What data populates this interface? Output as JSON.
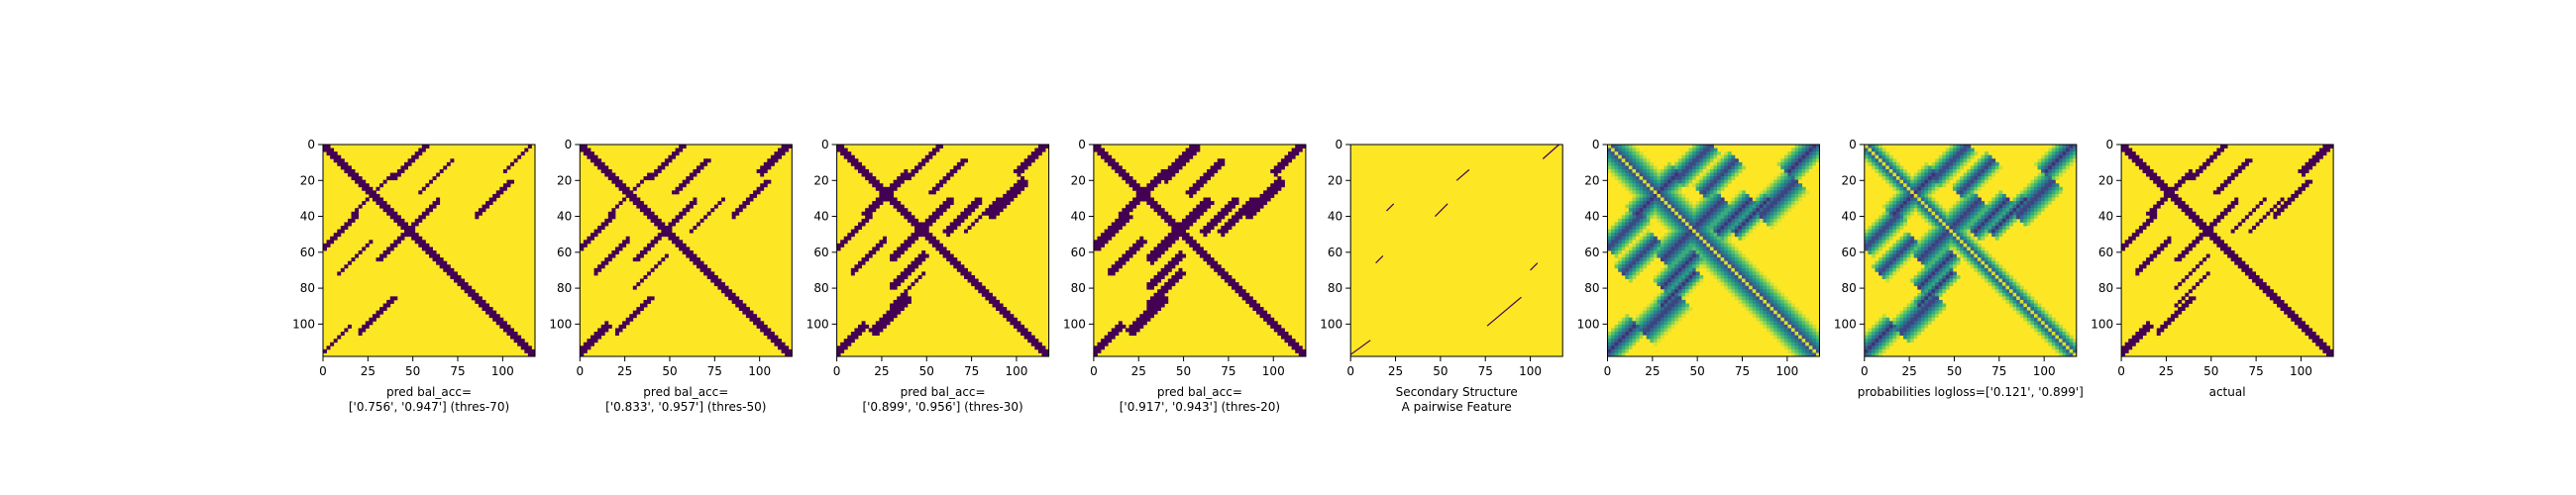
{
  "figure": {
    "background": "#ffffff",
    "colormap": "viridis",
    "colors": {
      "low": "#440154",
      "high": "#fde725",
      "mid": "#21918c"
    }
  },
  "chart_data": [
    {
      "type": "heatmap",
      "title": "",
      "xlabel": "pred bal_acc=\n['0.756', '0.947'] (thres-70)",
      "ylabel": "",
      "xlim": [
        0,
        118
      ],
      "ylim": [
        118,
        0
      ],
      "xticks": [
        0,
        25,
        50,
        75,
        100
      ],
      "yticks": [
        0,
        20,
        40,
        60,
        80,
        100
      ],
      "kind": "binary",
      "diagonal_width": 2.2,
      "features": [
        {
          "a": 40,
          "b": 55,
          "w": 1.2
        },
        {
          "a": 10,
          "b": 48,
          "w": 1.0
        },
        {
          "a": 30,
          "b": 25,
          "w": 0.8
        },
        {
          "a": 95,
          "b": 30,
          "w": 1.0
        },
        {
          "a": 110,
          "b": 6,
          "w": 1.2
        },
        {
          "a": 62,
          "b": 18,
          "w": 0.8
        }
      ]
    },
    {
      "type": "heatmap",
      "title": "",
      "xlabel": "pred bal_acc=\n['0.833', '0.957'] (thres-50)",
      "ylabel": "",
      "xlim": [
        0,
        118
      ],
      "ylim": [
        118,
        0
      ],
      "xticks": [
        0,
        25,
        50,
        75,
        100
      ],
      "yticks": [
        0,
        20,
        40,
        60,
        80,
        100
      ],
      "kind": "binary",
      "diagonal_width": 2.5,
      "features": [
        {
          "a": 40,
          "b": 55,
          "w": 1.6
        },
        {
          "a": 10,
          "b": 48,
          "w": 1.3
        },
        {
          "a": 30,
          "b": 25,
          "w": 1.2
        },
        {
          "a": 95,
          "b": 30,
          "w": 1.5
        },
        {
          "a": 110,
          "b": 6,
          "w": 1.6
        },
        {
          "a": 62,
          "b": 18,
          "w": 1.1
        },
        {
          "a": 70,
          "b": 40,
          "w": 1.0
        }
      ]
    },
    {
      "type": "heatmap",
      "title": "",
      "xlabel": "pred bal_acc=\n['0.899', '0.956'] (thres-30)",
      "ylabel": "",
      "xlim": [
        0,
        118
      ],
      "ylim": [
        118,
        0
      ],
      "xticks": [
        0,
        25,
        50,
        75,
        100
      ],
      "yticks": [
        0,
        20,
        40,
        60,
        80,
        100
      ],
      "kind": "binary",
      "diagonal_width": 3.0,
      "features": [
        {
          "a": 40,
          "b": 55,
          "w": 2.2
        },
        {
          "a": 10,
          "b": 48,
          "w": 1.8
        },
        {
          "a": 30,
          "b": 25,
          "w": 1.8
        },
        {
          "a": 95,
          "b": 30,
          "w": 2.2
        },
        {
          "a": 110,
          "b": 6,
          "w": 2.0
        },
        {
          "a": 62,
          "b": 18,
          "w": 1.6
        },
        {
          "a": 70,
          "b": 40,
          "w": 1.5
        },
        {
          "a": 40,
          "b": 80,
          "w": 1.2
        }
      ]
    },
    {
      "type": "heatmap",
      "title": "",
      "xlabel": "pred bal_acc=\n['0.917', '0.943'] (thres-20)",
      "ylabel": "",
      "xlim": [
        0,
        118
      ],
      "ylim": [
        118,
        0
      ],
      "xticks": [
        0,
        25,
        50,
        75,
        100
      ],
      "yticks": [
        0,
        20,
        40,
        60,
        80,
        100
      ],
      "kind": "binary",
      "diagonal_width": 3.4,
      "features": [
        {
          "a": 40,
          "b": 55,
          "w": 2.7
        },
        {
          "a": 10,
          "b": 48,
          "w": 2.2
        },
        {
          "a": 30,
          "b": 25,
          "w": 2.3
        },
        {
          "a": 95,
          "b": 30,
          "w": 2.8
        },
        {
          "a": 110,
          "b": 6,
          "w": 2.4
        },
        {
          "a": 62,
          "b": 18,
          "w": 2.0
        },
        {
          "a": 70,
          "b": 40,
          "w": 2.0
        },
        {
          "a": 40,
          "b": 80,
          "w": 1.6
        }
      ]
    },
    {
      "type": "heatmap",
      "title": "",
      "xlabel": "Secondary Structure\nA pairwise Feature",
      "ylabel": "",
      "xlim": [
        0,
        118
      ],
      "ylim": [
        118,
        0
      ],
      "xticks": [
        0,
        25,
        50,
        75,
        100
      ],
      "yticks": [
        0,
        20,
        40,
        60,
        80,
        100
      ],
      "kind": "segments",
      "segments": [
        {
          "x1": 20,
          "y1": 37,
          "x2": 24,
          "y2": 33
        },
        {
          "x1": 47,
          "y1": 40,
          "x2": 54,
          "y2": 33
        },
        {
          "x1": 59,
          "y1": 20,
          "x2": 66,
          "y2": 14
        },
        {
          "x1": 14,
          "y1": 66,
          "x2": 18,
          "y2": 62
        },
        {
          "x1": 76,
          "y1": 101,
          "x2": 95,
          "y2": 85
        },
        {
          "x1": 100,
          "y1": 70,
          "x2": 104,
          "y2": 66
        },
        {
          "x1": 107,
          "y1": 8,
          "x2": 116,
          "y2": 0
        },
        {
          "x1": 0,
          "y1": 117,
          "x2": 11,
          "y2": 109
        }
      ]
    },
    {
      "type": "heatmap",
      "title": "",
      "xlabel": "",
      "ylabel": "",
      "xlim": [
        0,
        118
      ],
      "ylim": [
        118,
        0
      ],
      "xticks": [
        0,
        25,
        50,
        75,
        100
      ],
      "yticks": [
        0,
        20,
        40,
        60,
        80,
        100
      ],
      "kind": "probabilities",
      "diagonal_width": 5.0,
      "features": [
        {
          "a": 40,
          "b": 55,
          "w": 3.2
        },
        {
          "a": 10,
          "b": 48,
          "w": 2.6
        },
        {
          "a": 30,
          "b": 25,
          "w": 2.8
        },
        {
          "a": 95,
          "b": 30,
          "w": 3.2
        },
        {
          "a": 110,
          "b": 6,
          "w": 2.8
        },
        {
          "a": 62,
          "b": 18,
          "w": 2.4
        },
        {
          "a": 70,
          "b": 40,
          "w": 2.5
        },
        {
          "a": 40,
          "b": 80,
          "w": 2.0
        }
      ]
    },
    {
      "type": "heatmap",
      "title": "",
      "xlabel": "probabilities logloss=['0.121', '0.899']",
      "ylabel": "",
      "xlim": [
        0,
        118
      ],
      "ylim": [
        118,
        0
      ],
      "xticks": [
        0,
        25,
        50,
        75,
        100
      ],
      "yticks": [
        0,
        20,
        40,
        60,
        80,
        100
      ],
      "kind": "probabilities",
      "diagonal_width": 3.0,
      "features": [
        {
          "a": 40,
          "b": 55,
          "w": 3.0
        },
        {
          "a": 10,
          "b": 48,
          "w": 2.4
        },
        {
          "a": 30,
          "b": 25,
          "w": 2.6
        },
        {
          "a": 95,
          "b": 30,
          "w": 3.0
        },
        {
          "a": 110,
          "b": 6,
          "w": 2.6
        },
        {
          "a": 62,
          "b": 18,
          "w": 2.2
        },
        {
          "a": 70,
          "b": 40,
          "w": 2.3
        },
        {
          "a": 40,
          "b": 80,
          "w": 1.8
        }
      ]
    },
    {
      "type": "heatmap",
      "title": "",
      "xlabel": "actual",
      "ylabel": "",
      "xlim": [
        0,
        118
      ],
      "ylim": [
        118,
        0
      ],
      "xticks": [
        0,
        25,
        50,
        75,
        100
      ],
      "yticks": [
        0,
        20,
        40,
        60,
        80,
        100
      ],
      "kind": "binary",
      "diagonal_width": 2.8,
      "features": [
        {
          "a": 40,
          "b": 55,
          "w": 1.5
        },
        {
          "a": 10,
          "b": 48,
          "w": 1.2
        },
        {
          "a": 30,
          "b": 25,
          "w": 1.4
        },
        {
          "a": 95,
          "b": 30,
          "w": 1.5
        },
        {
          "a": 110,
          "b": 6,
          "w": 1.5
        },
        {
          "a": 62,
          "b": 18,
          "w": 1.2
        },
        {
          "a": 70,
          "b": 40,
          "w": 1.2
        },
        {
          "a": 40,
          "b": 80,
          "w": 1.0
        }
      ]
    }
  ]
}
